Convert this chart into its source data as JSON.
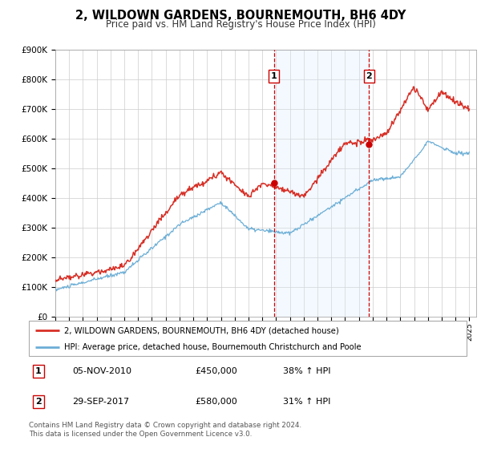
{
  "title": "2, WILDOWN GARDENS, BOURNEMOUTH, BH6 4DY",
  "subtitle": "Price paid vs. HM Land Registry's House Price Index (HPI)",
  "ylim": [
    0,
    900000
  ],
  "yticks": [
    0,
    100000,
    200000,
    300000,
    400000,
    500000,
    600000,
    700000,
    800000,
    900000
  ],
  "ytick_labels": [
    "£0",
    "£100K",
    "£200K",
    "£300K",
    "£400K",
    "£500K",
    "£600K",
    "£700K",
    "£800K",
    "£900K"
  ],
  "xlim_start": 1995.0,
  "xlim_end": 2025.5,
  "hpi_color": "#6baed6",
  "price_color": "#d73027",
  "shaded_region_color": "#ddeeff",
  "dashed_line_color": "#cc0000",
  "dot_color": "#cc0000",
  "sale1_x": 2010.84,
  "sale1_y": 450000,
  "sale2_x": 2017.74,
  "sale2_y": 580000,
  "legend_line1": "2, WILDOWN GARDENS, BOURNEMOUTH, BH6 4DY (detached house)",
  "legend_line2": "HPI: Average price, detached house, Bournemouth Christchurch and Poole",
  "table_row1_label": "1",
  "table_row1_date": "05-NOV-2010",
  "table_row1_price": "£450,000",
  "table_row1_hpi": "38% ↑ HPI",
  "table_row2_label": "2",
  "table_row2_date": "29-SEP-2017",
  "table_row2_price": "£580,000",
  "table_row2_hpi": "31% ↑ HPI",
  "footer_text": "Contains HM Land Registry data © Crown copyright and database right 2024.\nThis data is licensed under the Open Government Licence v3.0.",
  "background_color": "#ffffff",
  "grid_color": "#cccccc"
}
